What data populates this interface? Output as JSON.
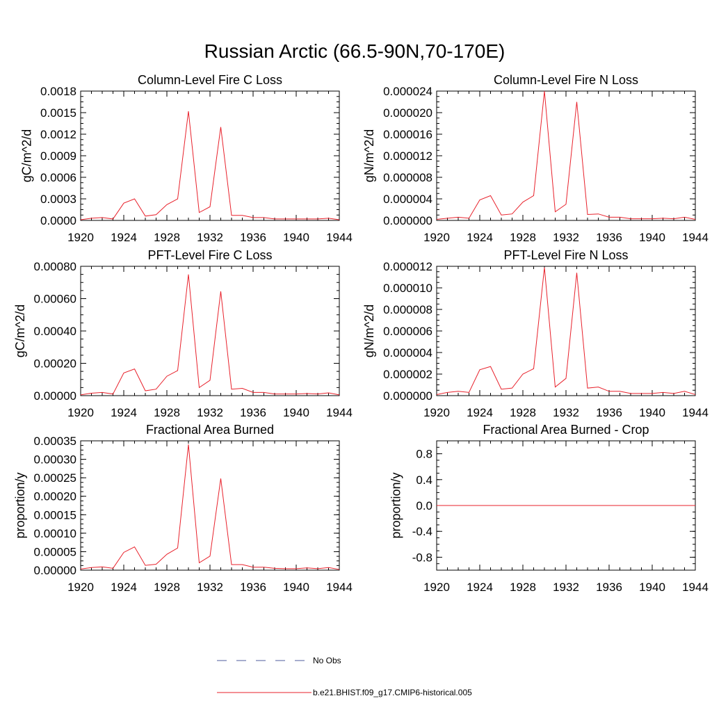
{
  "figure": {
    "title": "Russian Arctic (66.5-90N,70-170E)",
    "series_color": "#e8212b",
    "obs_color": "#4c5b9e",
    "legend": {
      "obs_label": "No Obs",
      "model_label": "b.e21.BHIST.f09_g17.CMIP6-historical.005"
    }
  },
  "chart_data": [
    {
      "type": "line",
      "title": "Column-Level Fire C Loss",
      "ylabel": "gC/m^2/d",
      "xlim": [
        1920,
        1944
      ],
      "ylim": [
        0,
        0.0018
      ],
      "x_ticks": [
        "1920",
        "1924",
        "1928",
        "1932",
        "1936",
        "1940",
        "1944"
      ],
      "y_ticks": [
        "0.0000",
        "0.0003",
        "0.0006",
        "0.0009",
        "0.0012",
        "0.0015",
        "0.0018"
      ],
      "x": [
        1920,
        1921,
        1922,
        1923,
        1924,
        1925,
        1926,
        1927,
        1928,
        1929,
        1930,
        1931,
        1932,
        1933,
        1934,
        1935,
        1936,
        1937,
        1938,
        1939,
        1940,
        1941,
        1942,
        1943,
        1944
      ],
      "series": [
        {
          "name": "b.e21.BHIST.f09_g17.CMIP6-historical.005",
          "values": [
            1e-05,
            3e-05,
            4e-05,
            2e-05,
            0.00024,
            0.0003,
            6e-05,
            8e-05,
            0.00022,
            0.0003,
            0.00152,
            0.00011,
            0.00019,
            0.0013,
            7e-05,
            7e-05,
            4e-05,
            4e-05,
            2e-05,
            2e-05,
            2e-05,
            2e-05,
            2e-05,
            3e-05,
            1e-05
          ]
        }
      ]
    },
    {
      "type": "line",
      "title": "Column-Level Fire N Loss",
      "ylabel": "gN/m^2/d",
      "xlim": [
        1920,
        1944
      ],
      "ylim": [
        0,
        2.4e-05
      ],
      "x_ticks": [
        "1920",
        "1924",
        "1928",
        "1932",
        "1936",
        "1940",
        "1944"
      ],
      "y_ticks": [
        "0.000000",
        "0.000004",
        "0.000008",
        "0.000012",
        "0.000016",
        "0.000020",
        "0.000024"
      ],
      "x": [
        1920,
        1921,
        1922,
        1923,
        1924,
        1925,
        1926,
        1927,
        1928,
        1929,
        1930,
        1931,
        1932,
        1933,
        1934,
        1935,
        1936,
        1937,
        1938,
        1939,
        1940,
        1941,
        1942,
        1943,
        1944
      ],
      "series": [
        {
          "name": "b.e21.BHIST.f09_g17.CMIP6-historical.005",
          "values": [
            2e-07,
            4e-07,
            6e-07,
            4e-07,
            3.8e-06,
            4.6e-06,
            1e-06,
            1.2e-06,
            3.4e-06,
            4.6e-06,
            2.4e-05,
            1.6e-06,
            3e-06,
            2.2e-05,
            1.1e-06,
            1.2e-06,
            6e-07,
            6e-07,
            3e-07,
            3e-07,
            3e-07,
            4e-07,
            3e-07,
            6e-07,
            2e-07
          ]
        }
      ]
    },
    {
      "type": "line",
      "title": "PFT-Level Fire C Loss",
      "ylabel": "gC/m^2/d",
      "xlim": [
        1920,
        1944
      ],
      "ylim": [
        0,
        0.0008
      ],
      "x_ticks": [
        "1920",
        "1924",
        "1928",
        "1932",
        "1936",
        "1940",
        "1944"
      ],
      "y_ticks": [
        "0.00000",
        "0.00020",
        "0.00040",
        "0.00060",
        "0.00080"
      ],
      "x": [
        1920,
        1921,
        1922,
        1923,
        1924,
        1925,
        1926,
        1927,
        1928,
        1929,
        1930,
        1931,
        1932,
        1933,
        1934,
        1935,
        1936,
        1937,
        1938,
        1939,
        1940,
        1941,
        1942,
        1943,
        1944
      ],
      "series": [
        {
          "name": "b.e21.BHIST.f09_g17.CMIP6-historical.005",
          "values": [
            5e-06,
            1.5e-05,
            2e-05,
            1e-05,
            0.00014,
            0.000165,
            3e-05,
            4e-05,
            0.00012,
            0.000155,
            0.00075,
            5e-05,
            9.5e-05,
            0.000645,
            4e-05,
            4.5e-05,
            2e-05,
            2e-05,
            1e-05,
            1e-05,
            1e-05,
            1.3e-05,
            1e-05,
            1.7e-05,
            5e-06
          ]
        }
      ]
    },
    {
      "type": "line",
      "title": "PFT-Level Fire N Loss",
      "ylabel": "gN/m^2/d",
      "xlim": [
        1920,
        1944
      ],
      "ylim": [
        0,
        1.2e-05
      ],
      "x_ticks": [
        "1920",
        "1924",
        "1928",
        "1932",
        "1936",
        "1940",
        "1944"
      ],
      "y_ticks": [
        "0.000000",
        "0.000002",
        "0.000004",
        "0.000006",
        "0.000008",
        "0.000010",
        "0.000012"
      ],
      "x": [
        1920,
        1921,
        1922,
        1923,
        1924,
        1925,
        1926,
        1927,
        1928,
        1929,
        1930,
        1931,
        1932,
        1933,
        1934,
        1935,
        1936,
        1937,
        1938,
        1939,
        1940,
        1941,
        1942,
        1943,
        1944
      ],
      "series": [
        {
          "name": "b.e21.BHIST.f09_g17.CMIP6-historical.005",
          "values": [
            1e-07,
            3e-07,
            4e-07,
            3e-07,
            2.4e-06,
            2.7e-06,
            6e-07,
            7e-07,
            2e-06,
            2.5e-06,
            1.19e-05,
            8e-07,
            1.6e-06,
            1.14e-05,
            7e-07,
            8e-07,
            4e-07,
            4e-07,
            2e-07,
            2e-07,
            2e-07,
            3e-07,
            2e-07,
            4e-07,
            1e-07
          ]
        }
      ]
    },
    {
      "type": "line",
      "title": "Fractional Area Burned",
      "ylabel": "proportion/y",
      "xlim": [
        1920,
        1944
      ],
      "ylim": [
        0,
        0.00035
      ],
      "x_ticks": [
        "1920",
        "1924",
        "1928",
        "1932",
        "1936",
        "1940",
        "1944"
      ],
      "y_ticks": [
        "0.00000",
        "0.00005",
        "0.00010",
        "0.00015",
        "0.00020",
        "0.00025",
        "0.00030",
        "0.00035"
      ],
      "x": [
        1920,
        1921,
        1922,
        1923,
        1924,
        1925,
        1926,
        1927,
        1928,
        1929,
        1930,
        1931,
        1932,
        1933,
        1934,
        1935,
        1936,
        1937,
        1938,
        1939,
        1940,
        1941,
        1942,
        1943,
        1944
      ],
      "series": [
        {
          "name": "b.e21.BHIST.f09_g17.CMIP6-historical.005",
          "values": [
            3e-06,
            7e-06,
            9e-06,
            5e-06,
            4.8e-05,
            6.3e-05,
            1.3e-05,
            1.6e-05,
            4.3e-05,
            6e-05,
            0.00034,
            2e-05,
            3.8e-05,
            0.000248,
            1.5e-05,
            1.5e-05,
            8e-06,
            8e-06,
            5e-06,
            4e-06,
            4e-06,
            6e-06,
            4e-06,
            7e-06,
            2e-06
          ]
        }
      ]
    },
    {
      "type": "line",
      "title": "Fractional Area Burned - Crop",
      "ylabel": "proportion/y",
      "xlim": [
        1920,
        1944
      ],
      "ylim": [
        -1,
        1
      ],
      "x_ticks": [
        "1920",
        "1924",
        "1928",
        "1932",
        "1936",
        "1940",
        "1944"
      ],
      "y_ticks": [
        "-0.8",
        "-0.4",
        "0.0",
        "0.4",
        "0.8"
      ],
      "y_tick_values": [
        -0.8,
        -0.4,
        0.0,
        0.4,
        0.8
      ],
      "x": [
        1920,
        1921,
        1922,
        1923,
        1924,
        1925,
        1926,
        1927,
        1928,
        1929,
        1930,
        1931,
        1932,
        1933,
        1934,
        1935,
        1936,
        1937,
        1938,
        1939,
        1940,
        1941,
        1942,
        1943,
        1944
      ],
      "series": [
        {
          "name": "b.e21.BHIST.f09_g17.CMIP6-historical.005",
          "values": [
            0,
            0,
            0,
            0,
            0,
            0,
            0,
            0,
            0,
            0,
            0,
            0,
            0,
            0,
            0,
            0,
            0,
            0,
            0,
            0,
            0,
            0,
            0,
            0,
            0
          ]
        }
      ]
    }
  ]
}
